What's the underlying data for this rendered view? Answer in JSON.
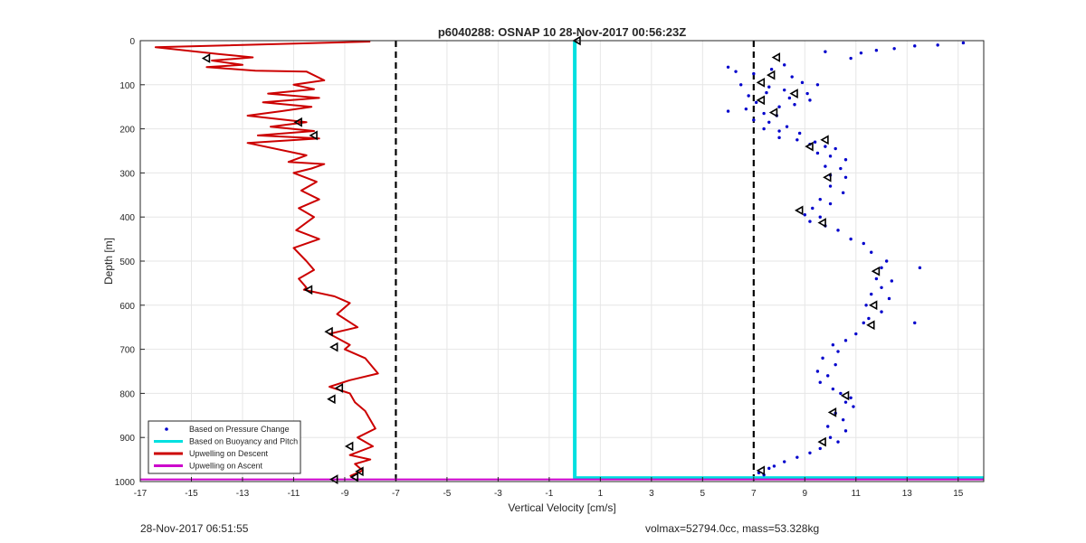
{
  "chart_data": {
    "type": "scatter",
    "title": "p6040288: OSNAP 10 28-Nov-2017 00:56:23Z",
    "xlabel": "Vertical Velocity [cm/s]",
    "ylabel": "Depth [m]",
    "xlim": [
      -17,
      16
    ],
    "ylim": [
      0,
      1000
    ],
    "y_reversed": true,
    "grid": true,
    "xticks": [
      -17,
      -15,
      -13,
      -11,
      -9,
      -7,
      -5,
      -3,
      -1,
      1,
      3,
      5,
      7,
      9,
      11,
      13,
      15
    ],
    "yticks": [
      0,
      100,
      200,
      300,
      400,
      500,
      600,
      700,
      800,
      900,
      1000
    ],
    "legend_position": "bottom-left",
    "reference_lines": [
      -7,
      7
    ],
    "series": [
      {
        "name": "Based on Pressure Change",
        "style": "dots",
        "color": "#0000cc",
        "x": [
          15.2,
          14.2,
          13.3,
          12.5,
          11.8,
          11.2,
          10.8,
          9.8,
          8.2,
          6.0,
          6.3,
          7.0,
          7.7,
          8.5,
          8.9,
          9.5,
          6.5,
          7.6,
          8.2,
          9.1,
          6.8,
          7.5,
          8.4,
          9.2,
          6.0,
          7.1,
          8.0,
          8.6,
          6.7,
          7.4,
          7.9,
          7.0,
          7.6,
          8.3,
          7.4,
          8.0,
          8.8,
          8.0,
          8.7,
          9.4,
          9.2,
          9.8,
          10.2,
          9.5,
          10.0,
          10.6,
          9.8,
          10.4,
          10.0,
          10.6,
          10.0,
          10.5,
          9.6,
          10.0,
          9.3,
          9.0,
          9.6,
          9.2,
          9.8,
          10.3,
          10.8,
          11.3,
          11.6,
          12.2,
          12.0,
          13.5,
          11.8,
          12.4,
          12.0,
          11.6,
          12.3,
          11.4,
          12.0,
          11.5,
          11.3,
          13.3,
          11.0,
          10.6,
          10.1,
          10.3,
          9.7,
          10.2,
          9.5,
          9.9,
          9.6,
          10.1,
          10.4,
          10.8,
          10.6,
          10.9,
          10.2,
          10.5,
          9.9,
          10.6,
          10.0,
          10.3,
          9.6,
          9.2,
          8.7,
          8.2,
          7.8,
          7.6,
          7.2,
          7.4
        ],
        "y": [
          5,
          10,
          12,
          18,
          22,
          28,
          40,
          25,
          55,
          60,
          70,
          75,
          65,
          82,
          95,
          100,
          100,
          105,
          112,
          120,
          125,
          118,
          130,
          135,
          160,
          140,
          150,
          145,
          155,
          165,
          170,
          180,
          185,
          195,
          200,
          205,
          210,
          220,
          225,
          230,
          235,
          240,
          245,
          255,
          262,
          270,
          285,
          290,
          305,
          310,
          330,
          345,
          360,
          370,
          380,
          395,
          400,
          410,
          420,
          430,
          450,
          460,
          480,
          500,
          515,
          515,
          540,
          545,
          560,
          575,
          585,
          600,
          615,
          630,
          640,
          640,
          665,
          680,
          690,
          705,
          720,
          735,
          750,
          760,
          775,
          790,
          800,
          810,
          820,
          830,
          845,
          860,
          875,
          885,
          900,
          910,
          925,
          935,
          945,
          955,
          965,
          970,
          980,
          985
        ]
      },
      {
        "name": "Based on Buoyancy and Pitch",
        "style": "line",
        "color": "#00e0e0",
        "x": [
          0,
          0,
          16
        ],
        "y": [
          0,
          992,
          992
        ]
      },
      {
        "name": "Upwelling on Descent",
        "style": "line",
        "color": "#cc0000",
        "x": [
          -8.0,
          -16.4,
          -14.0,
          -12.6,
          -14.2,
          -13.0,
          -14.4,
          -12.5,
          -10.5,
          -9.8,
          -11.0,
          -10.2,
          -12.0,
          -10.0,
          -12.2,
          -10.3,
          -11.5,
          -12.8,
          -10.5,
          -11.9,
          -10.2,
          -12.4,
          -10.0,
          -12.8,
          -10.5,
          -11.2,
          -9.8,
          -10.3,
          -11.0,
          -10.1,
          -10.7,
          -10.0,
          -10.8,
          -10.2,
          -10.9,
          -10.0,
          -11.0,
          -10.5,
          -10.2,
          -10.8,
          -10.5,
          -10.6,
          -9.4,
          -8.8,
          -9.3,
          -8.5,
          -9.6,
          -8.8,
          -9.0,
          -8.2,
          -7.7,
          -8.8,
          -9.6,
          -8.8,
          -8.6,
          -8.2,
          -8.0,
          -7.8,
          -8.5,
          -7.9,
          -8.8,
          -8.0,
          -8.6,
          -8.3,
          -8.8
        ],
        "y": [
          2,
          15,
          30,
          38,
          45,
          55,
          60,
          68,
          70,
          90,
          100,
          110,
          120,
          130,
          140,
          150,
          160,
          170,
          185,
          195,
          205,
          215,
          222,
          232,
          260,
          275,
          280,
          290,
          300,
          320,
          340,
          360,
          380,
          400,
          430,
          450,
          470,
          500,
          520,
          540,
          560,
          565,
          580,
          595,
          620,
          650,
          665,
          690,
          700,
          720,
          755,
          770,
          785,
          800,
          820,
          840,
          860,
          880,
          900,
          920,
          940,
          950,
          960,
          975,
          988
        ]
      },
      {
        "name": "Upwelling on Ascent",
        "style": "line",
        "color": "#cc00cc",
        "x": [
          -17,
          16
        ],
        "y": [
          995,
          995
        ]
      }
    ],
    "triangle_markers": {
      "color": "#000000",
      "x": [
        -14.4,
        -10.8,
        -10.2,
        -10.4,
        -9.6,
        -9.4,
        -9.2,
        -9.5,
        -8.8,
        -8.4,
        -8.6,
        -9.4,
        0.1,
        7.9,
        7.3,
        7.7,
        8.6,
        7.3,
        7.8,
        9.8,
        9.2,
        9.9,
        8.8,
        9.7,
        11.8,
        11.7,
        11.6,
        10.6,
        10.1,
        9.7,
        7.3
      ],
      "y": [
        40,
        185,
        215,
        565,
        660,
        695,
        788,
        813,
        920,
        977,
        990,
        995,
        0,
        38,
        95,
        78,
        120,
        135,
        163,
        225,
        240,
        310,
        385,
        413,
        523,
        600,
        645,
        805,
        843,
        910,
        975
      ]
    }
  },
  "footer": {
    "left": "28-Nov-2017 06:51:55",
    "right": "volmax=52794.0cc, mass=53.328kg"
  }
}
